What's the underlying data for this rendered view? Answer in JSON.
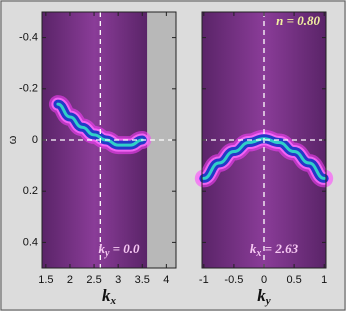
{
  "chart_data": [
    {
      "type": "line",
      "xlabel": {
        "symbol": "k",
        "subscript": "x"
      },
      "ylabel": "ω",
      "xlim": [
        1.42,
        4.2
      ],
      "ylim": [
        0.5,
        -0.5
      ],
      "xticks": [
        1.5,
        2,
        2.5,
        3,
        3.5,
        4
      ],
      "yticks": [
        -0.4,
        -0.2,
        0,
        0.2,
        0.4
      ],
      "shaded_range": [
        1.42,
        3.6
      ],
      "reference_lines": {
        "x": 2.63,
        "y": 0
      },
      "x": [
        1.75,
        2.0,
        2.25,
        2.5,
        2.75,
        3.0,
        3.25,
        3.5
      ],
      "series": [
        {
          "color": "#2438c8",
          "values": [
            -0.14,
            -0.09,
            -0.05,
            -0.02,
            0.0,
            0.02,
            0.02,
            0.0
          ]
        }
      ],
      "annotations": [
        {
          "symbol": "k",
          "subscript": "y",
          "text": " = 0.0",
          "color": "#f6c8f2",
          "position": "bottom"
        }
      ]
    },
    {
      "type": "line",
      "xlabel": {
        "symbol": "k",
        "subscript": "y"
      },
      "xlim": [
        -1.03,
        1.03
      ],
      "ylim": [
        0.5,
        -0.5
      ],
      "xticks": [
        -1,
        -0.5,
        0,
        0.5,
        1
      ],
      "yticks": [
        -0.4,
        -0.2,
        0,
        0.2,
        0.4
      ],
      "shaded_range": [
        -1.03,
        1.03
      ],
      "reference_lines": {
        "x": 0,
        "y": 0
      },
      "x": [
        -1,
        -0.75,
        -0.5,
        -0.25,
        0,
        0.25,
        0.5,
        0.75,
        1
      ],
      "series": [
        {
          "color": "#2438c8",
          "values": [
            0.15,
            0.09,
            0.045,
            0.01,
            -0.005,
            0.01,
            0.045,
            0.09,
            0.15
          ]
        }
      ],
      "annotations": [
        {
          "text": "n = 0.80",
          "color": "#f2f0a0",
          "position": "top right"
        },
        {
          "symbol": "k",
          "subscript": "x",
          "text": " = 2.63",
          "color": "#f6c8f2",
          "position": "bottom"
        }
      ]
    }
  ]
}
